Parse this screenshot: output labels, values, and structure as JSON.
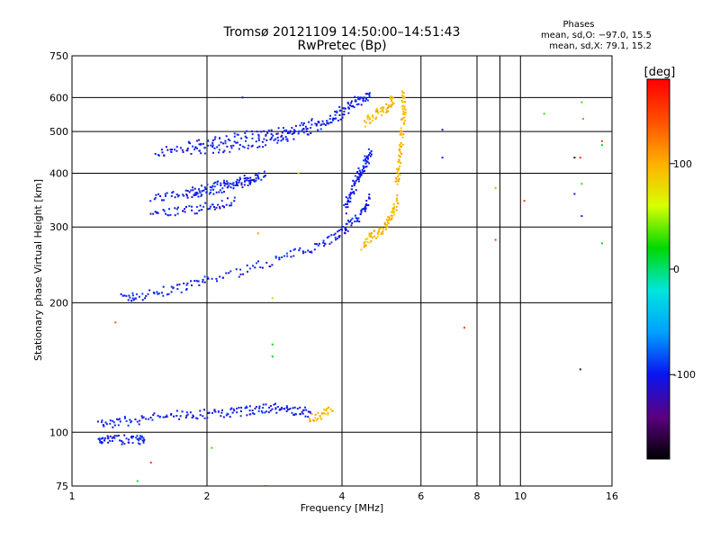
{
  "chart_data": {
    "type": "scatter",
    "title": "Tromsø 20121109 14:50:00–14:51:43",
    "subtitle": "RwPretec (Bp)",
    "xlabel": "Frequency [MHz]",
    "ylabel": "Stationary phase Virtual Height [km]",
    "x_scale": "log",
    "y_scale": "log",
    "xlim": [
      1,
      16
    ],
    "ylim": [
      75,
      750
    ],
    "x_ticks": [
      1,
      2,
      4,
      6,
      8,
      10,
      16
    ],
    "x_minor_gridlines": [
      9
    ],
    "y_ticks": [
      75,
      100,
      200,
      300,
      400,
      500,
      600,
      750
    ],
    "grid": true,
    "phase_info": {
      "heading": "Phases",
      "line_o": "mean, sd,O: −97.0, 15.5",
      "line_x": "mean, sd,X:  79.1, 15.2"
    },
    "colorbar": {
      "label": "[deg]",
      "range": [
        -180,
        180
      ],
      "ticks": [
        100,
        0,
        -100
      ],
      "stops": [
        "#000000",
        "#5a0080",
        "#0a14f0",
        "#00a0ff",
        "#00e6dc",
        "#00d800",
        "#d8ff00",
        "#ffb000",
        "#ff5000",
        "#ff0000"
      ]
    },
    "series": [
      {
        "phase": -100,
        "traces": [
          {
            "x": [
              1.3,
              1.4,
              1.6,
              1.8,
              2.0,
              2.4,
              2.8,
              3.2,
              3.6,
              3.9,
              4.1,
              4.3,
              4.5,
              4.6
            ],
            "y": [
              205,
              207,
              212,
              218,
              225,
              237,
              250,
              262,
              275,
              287,
              298,
              312,
              332,
              350
            ]
          },
          {
            "x": [
              4.05,
              4.15,
              4.25,
              4.35,
              4.45,
              4.55,
              4.65
            ],
            "y": [
              330,
              350,
              370,
              395,
              410,
              430,
              450
            ]
          },
          {
            "x": [
              1.55,
              1.7,
              2.0,
              2.3,
              2.6,
              2.9,
              3.1,
              3.4,
              3.8,
              4.1,
              4.4,
              4.6
            ],
            "y": [
              450,
              450,
              455,
              460,
              470,
              480,
              490,
              505,
              530,
              560,
              590,
              610
            ]
          },
          {
            "x": [
              1.8,
              2.0,
              2.2,
              2.5,
              2.8,
              3.2,
              3.6,
              4.0,
              4.4
            ],
            "y": [
              465,
              470,
              480,
              490,
              500,
              510,
              530,
              560,
              600
            ]
          },
          {
            "x": [
              1.5,
              1.7,
              1.9,
              2.1,
              2.3,
              2.5,
              2.7
            ],
            "y": [
              350,
              355,
              360,
              368,
              375,
              385,
              395
            ]
          },
          {
            "x": [
              1.5,
              1.7,
              1.9,
              2.1,
              2.3
            ],
            "y": [
              320,
              325,
              330,
              338,
              345
            ]
          },
          {
            "x": [
              1.8,
              2.0,
              2.2,
              2.4,
              2.6
            ],
            "y": [
              360,
              370,
              378,
              385,
              392
            ]
          },
          {
            "x": [
              1.15,
              1.2,
              1.3,
              1.4,
              1.45
            ],
            "y": [
              96,
              97,
              96,
              96,
              96
            ]
          },
          {
            "x": [
              1.15,
              1.25,
              1.4,
              1.6,
              1.8,
              2.0,
              2.2,
              2.4,
              2.6,
              2.8,
              3.0,
              3.2,
              3.4
            ],
            "y": [
              104,
              105,
              107,
              109,
              110,
              110,
              111,
              112,
              113,
              114,
              113,
              112,
              111
            ]
          }
        ]
      },
      {
        "phase": 95,
        "traces": [
          {
            "x": [
              4.45,
              4.6,
              4.8,
              5.0,
              5.1,
              5.25,
              5.3
            ],
            "y": [
              272,
              282,
              290,
              300,
              315,
              330,
              350
            ]
          },
          {
            "x": [
              5.3,
              5.35,
              5.4,
              5.45,
              5.48,
              5.5,
              5.45
            ],
            "y": [
              380,
              410,
              450,
              500,
              540,
              580,
              620
            ]
          },
          {
            "x": [
              4.5,
              4.7,
              4.9,
              5.1,
              5.2
            ],
            "y": [
              525,
              540,
              560,
              570,
              600
            ]
          },
          {
            "x": [
              3.4,
              3.6,
              3.8
            ],
            "y": [
              108,
              110,
              112
            ]
          }
        ]
      }
    ],
    "scattered_points": [
      {
        "x": 1.4,
        "y": 77,
        "phase": 10
      },
      {
        "x": 1.5,
        "y": 85,
        "phase": 150
      },
      {
        "x": 1.25,
        "y": 180,
        "phase": 140
      },
      {
        "x": 2.05,
        "y": 92,
        "phase": 30
      },
      {
        "x": 2.4,
        "y": 600,
        "phase": -100
      },
      {
        "x": 2.6,
        "y": 290,
        "phase": 110
      },
      {
        "x": 2.7,
        "y": 75,
        "phase": 110
      },
      {
        "x": 2.8,
        "y": 205,
        "phase": 50
      },
      {
        "x": 2.8,
        "y": 160,
        "phase": 20
      },
      {
        "x": 2.8,
        "y": 150,
        "phase": 20
      },
      {
        "x": 3.2,
        "y": 400,
        "phase": 50
      },
      {
        "x": 6.7,
        "y": 505,
        "phase": -95
      },
      {
        "x": 6.7,
        "y": 435,
        "phase": -95
      },
      {
        "x": 7.5,
        "y": 175,
        "phase": 150
      },
      {
        "x": 8.8,
        "y": 370,
        "phase": 110
      },
      {
        "x": 8.8,
        "y": 280,
        "phase": 150
      },
      {
        "x": 10.2,
        "y": 345,
        "phase": 150
      },
      {
        "x": 11.3,
        "y": 550,
        "phase": 30
      },
      {
        "x": 13.2,
        "y": 435,
        "phase": -160
      },
      {
        "x": 13.2,
        "y": 358,
        "phase": -110
      },
      {
        "x": 13.7,
        "y": 585,
        "phase": 30
      },
      {
        "x": 13.8,
        "y": 535,
        "phase": 30
      },
      {
        "x": 13.7,
        "y": 378,
        "phase": 30
      },
      {
        "x": 13.7,
        "y": 318,
        "phase": -100
      },
      {
        "x": 13.6,
        "y": 140,
        "phase": -150
      },
      {
        "x": 13.6,
        "y": 435,
        "phase": 150
      },
      {
        "x": 15.2,
        "y": 475,
        "phase": 150
      },
      {
        "x": 15.2,
        "y": 465,
        "phase": 20
      },
      {
        "x": 15.2,
        "y": 275,
        "phase": 20
      }
    ]
  }
}
